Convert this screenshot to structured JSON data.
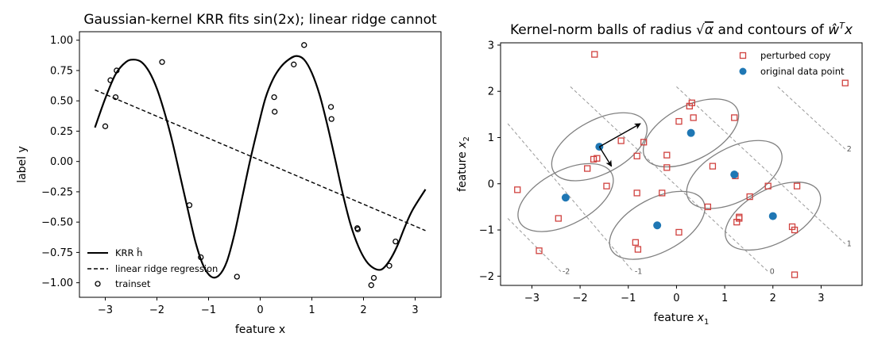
{
  "chart_data": [
    {
      "type": "line",
      "title": "Gaussian-kernel KRR fits sin(2x); linear ridge cannot",
      "xlabel": "feature x",
      "ylabel": "label y",
      "xlim": [
        -3.5,
        3.5
      ],
      "ylim": [
        -1.12,
        1.07
      ],
      "xticks": [
        -3,
        -2,
        -1,
        0,
        1,
        2,
        3
      ],
      "yticks": [
        -1.0,
        -0.75,
        -0.5,
        -0.25,
        0.0,
        0.25,
        0.5,
        0.75,
        1.0
      ],
      "xtick_labels": [
        "−3",
        "−2",
        "−1",
        "0",
        "1",
        "2",
        "3"
      ],
      "ytick_labels": [
        "−1.00",
        "−0.75",
        "−0.50",
        "−0.25",
        "0.00",
        "0.25",
        "0.50",
        "0.75",
        "1.00"
      ],
      "legend_position": "lower-left",
      "series": [
        {
          "name": "KRR ĥ",
          "style": "solid",
          "color": "#000000",
          "x": [
            -3.2,
            -3.0,
            -2.8,
            -2.6,
            -2.45,
            -2.3,
            -2.15,
            -2.0,
            -1.85,
            -1.7,
            -1.55,
            -1.4,
            -1.25,
            -1.1,
            -0.95,
            -0.8,
            -0.65,
            -0.5,
            -0.35,
            -0.2,
            -0.05,
            0.1,
            0.25,
            0.4,
            0.55,
            0.7,
            0.85,
            1.0,
            1.15,
            1.3,
            1.45,
            1.6,
            1.75,
            1.9,
            2.05,
            2.2,
            2.35,
            2.5,
            2.65,
            2.8,
            2.95,
            3.2
          ],
          "y": [
            0.28,
            0.52,
            0.72,
            0.82,
            0.84,
            0.82,
            0.74,
            0.6,
            0.4,
            0.16,
            -0.12,
            -0.4,
            -0.67,
            -0.86,
            -0.95,
            -0.94,
            -0.83,
            -0.6,
            -0.3,
            0.0,
            0.27,
            0.52,
            0.68,
            0.78,
            0.84,
            0.87,
            0.84,
            0.73,
            0.55,
            0.3,
            0.02,
            -0.27,
            -0.52,
            -0.7,
            -0.82,
            -0.88,
            -0.89,
            -0.82,
            -0.7,
            -0.54,
            -0.4,
            -0.23
          ]
        },
        {
          "name": "linear ridge regression",
          "style": "dashed",
          "color": "#000000",
          "x": [
            -3.2,
            3.2
          ],
          "y": [
            0.59,
            -0.57
          ]
        },
        {
          "name": "trainset",
          "style": "marker-circle-open",
          "color": "#000000",
          "x": [
            -3.0,
            -2.9,
            -2.8,
            -2.78,
            -1.9,
            -1.37,
            -1.15,
            -0.45,
            0.27,
            0.28,
            0.65,
            0.85,
            1.37,
            1.38,
            1.88,
            1.89,
            2.15,
            2.2,
            2.5,
            2.62
          ],
          "y": [
            0.29,
            0.67,
            0.53,
            0.75,
            0.82,
            -0.36,
            -0.79,
            -0.95,
            0.53,
            0.41,
            0.8,
            0.96,
            0.45,
            0.35,
            -0.55,
            -0.56,
            -1.02,
            -0.96,
            -0.86,
            -0.66
          ]
        }
      ]
    },
    {
      "type": "scatter",
      "title_parts": [
        "Kernel-norm balls of radius ",
        "√",
        "α",
        " and contours of ",
        "ŵ",
        "T",
        "x"
      ],
      "xlabel_parts": [
        "feature ",
        "x",
        "1"
      ],
      "ylabel_parts": [
        "feature ",
        "x",
        "2"
      ],
      "xlim": [
        -3.65,
        3.85
      ],
      "ylim": [
        -2.2,
        3.05
      ],
      "xticks": [
        -3,
        -2,
        -1,
        0,
        1,
        2,
        3
      ],
      "yticks": [
        -2,
        -1,
        0,
        1,
        2,
        3
      ],
      "xtick_labels": [
        "−3",
        "−2",
        "−1",
        "0",
        "1",
        "2",
        "3"
      ],
      "ytick_labels": [
        "−2",
        "−1",
        "0",
        "1",
        "2",
        "3"
      ],
      "legend_position": "top-right",
      "series": [
        {
          "name": "perturbed copy",
          "marker": "square-open",
          "color": "#d0423f",
          "x": [
            -1.7,
            -3.3,
            -2.85,
            -2.45,
            -1.85,
            -1.72,
            -1.65,
            -1.45,
            -1.15,
            -0.82,
            -0.82,
            -0.85,
            -0.8,
            -0.68,
            -0.3,
            -0.2,
            -0.2,
            0.05,
            0.05,
            0.27,
            0.32,
            0.35,
            0.65,
            0.75,
            1.2,
            1.22,
            1.25,
            1.3,
            1.3,
            1.52,
            1.9,
            2.4,
            2.45,
            2.45,
            2.5,
            3.5
          ],
          "y": [
            2.8,
            -0.13,
            -1.45,
            -0.75,
            0.33,
            0.53,
            0.55,
            -0.05,
            0.93,
            0.6,
            -0.2,
            -1.27,
            -1.42,
            0.9,
            -0.2,
            0.35,
            0.62,
            1.35,
            -1.05,
            1.68,
            1.75,
            1.43,
            -0.5,
            0.38,
            1.43,
            0.17,
            -0.83,
            -0.72,
            -0.75,
            -0.28,
            -0.05,
            -0.93,
            -1.0,
            -1.97,
            -0.05,
            2.18
          ]
        },
        {
          "name": "original data point",
          "marker": "circle-filled",
          "color": "#1f77b4",
          "x": [
            -1.6,
            0.3,
            -2.3,
            1.2,
            -0.4,
            2.0
          ],
          "y": [
            0.8,
            1.1,
            -0.3,
            0.2,
            -0.9,
            -0.7
          ]
        }
      ],
      "ellipses": {
        "color": "#808080",
        "centers": [
          [
            -1.6,
            0.8
          ],
          [
            0.3,
            1.1
          ],
          [
            -2.3,
            -0.3
          ],
          [
            1.2,
            0.2
          ],
          [
            -0.4,
            -0.9
          ],
          [
            2.0,
            -0.7
          ]
        ],
        "semi_axes": [
          1.08,
          0.58
        ],
        "angle_deg": 28
      },
      "contours": {
        "color": "#999999",
        "style": "dashed",
        "levels": [
          "-2",
          "-1",
          "0",
          "1",
          "2"
        ]
      },
      "arrows": {
        "color": "#000000",
        "origin": [
          -1.6,
          0.8
        ],
        "vectors": [
          [
            0.85,
            0.5
          ],
          [
            0.25,
            -0.42
          ]
        ]
      }
    }
  ]
}
